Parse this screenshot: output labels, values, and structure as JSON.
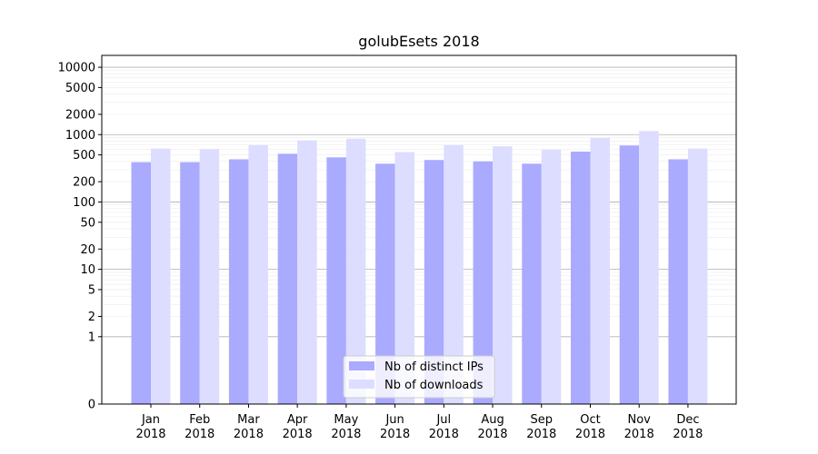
{
  "chart_data": {
    "type": "bar",
    "title": "golubEsets 2018",
    "xlabel": "",
    "ylabel": "",
    "y_scale": "symlog",
    "ylim": [
      0,
      15000
    ],
    "y_ticks": [
      {
        "value": 0,
        "label": "0"
      },
      {
        "value": 1,
        "label": "1"
      },
      {
        "value": 2,
        "label": "2"
      },
      {
        "value": 5,
        "label": "5"
      },
      {
        "value": 10,
        "label": "10"
      },
      {
        "value": 20,
        "label": "20"
      },
      {
        "value": 50,
        "label": "50"
      },
      {
        "value": 100,
        "label": "100"
      },
      {
        "value": 200,
        "label": "200"
      },
      {
        "value": 500,
        "label": "500"
      },
      {
        "value": 1000,
        "label": "1000"
      },
      {
        "value": 2000,
        "label": "2000"
      },
      {
        "value": 5000,
        "label": "5000"
      },
      {
        "value": 10000,
        "label": "10000"
      }
    ],
    "grid": true,
    "legend_position": "bottom-center",
    "categories": [
      {
        "month": "Jan",
        "year": "2018"
      },
      {
        "month": "Feb",
        "year": "2018"
      },
      {
        "month": "Mar",
        "year": "2018"
      },
      {
        "month": "Apr",
        "year": "2018"
      },
      {
        "month": "May",
        "year": "2018"
      },
      {
        "month": "Jun",
        "year": "2018"
      },
      {
        "month": "Jul",
        "year": "2018"
      },
      {
        "month": "Aug",
        "year": "2018"
      },
      {
        "month": "Sep",
        "year": "2018"
      },
      {
        "month": "Oct",
        "year": "2018"
      },
      {
        "month": "Nov",
        "year": "2018"
      },
      {
        "month": "Dec",
        "year": "2018"
      }
    ],
    "series": [
      {
        "name": "Nb of distinct IPs",
        "color": "#aaaaff",
        "values": [
          390,
          390,
          430,
          520,
          460,
          370,
          420,
          400,
          370,
          560,
          690,
          430
        ]
      },
      {
        "name": "Nb of downloads",
        "color": "#ddddff",
        "values": [
          620,
          610,
          700,
          820,
          870,
          550,
          700,
          670,
          600,
          890,
          1130,
          620
        ]
      }
    ]
  }
}
